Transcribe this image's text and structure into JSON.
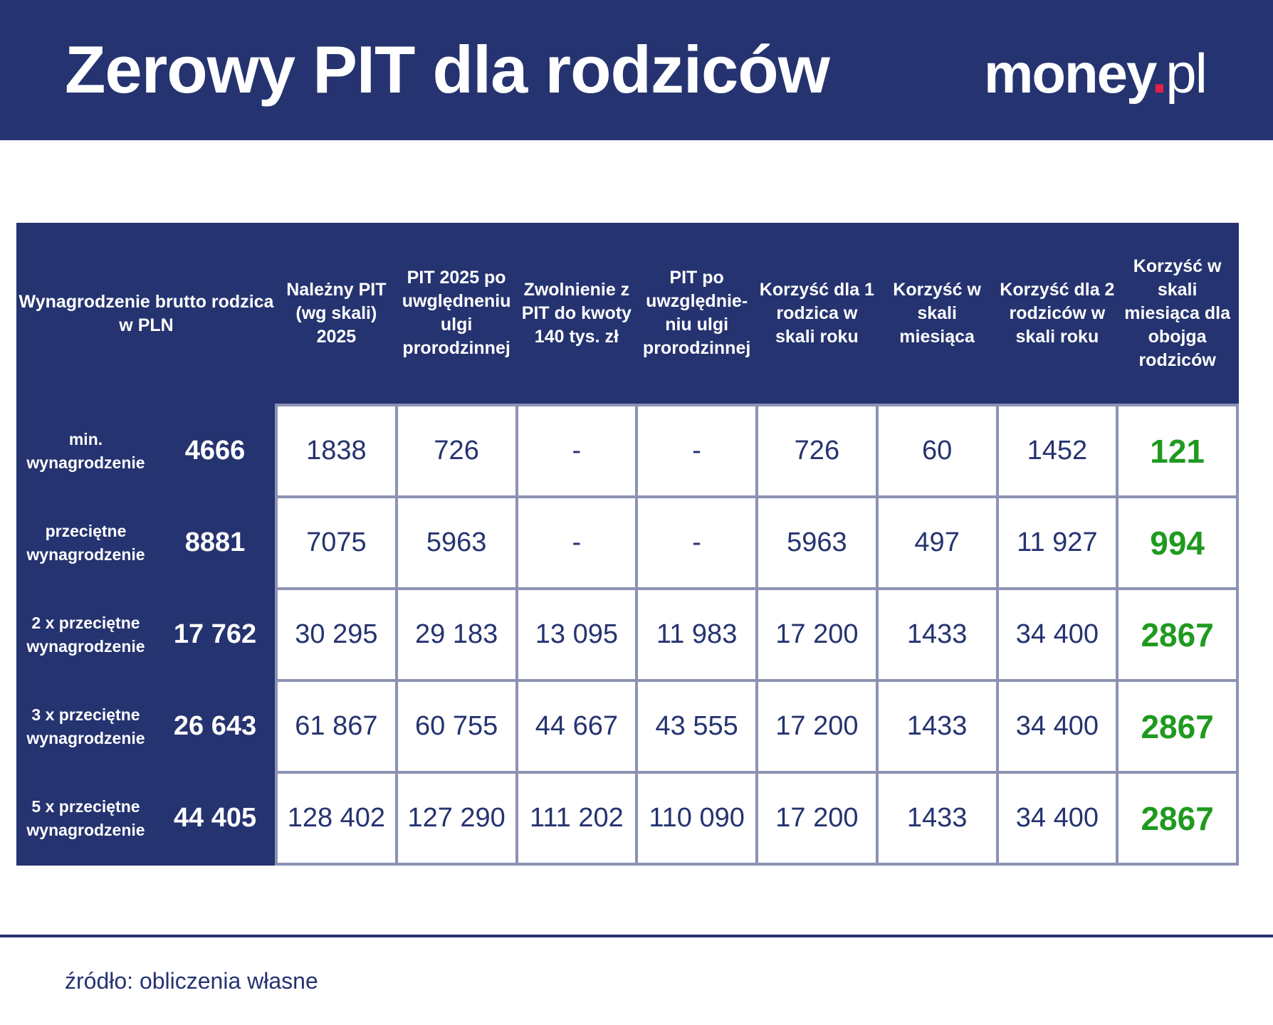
{
  "header": {
    "title": "Zerowy PIT dla rodziców",
    "logo": {
      "main": "money",
      "dot": ".",
      "suffix": "pl"
    }
  },
  "table": {
    "columns": [
      "Wynagrodzenie brutto rodzica w PLN",
      "Należny PIT (wg skali) 2025",
      "PIT 2025 po uwględneniu ulgi prorodzinnej",
      "Zwolnienie z PIT do kwoty 140 tys. zł",
      "PIT po uwzględnie-niu ulgi prorodzinnej",
      "Korzyść dla 1 rodzica w skali roku",
      "Korzyść w skali miesiąca",
      "Korzyść dla 2 rodziców w skali roku",
      "Korzyść w skali miesiąca dla obojga rodziców"
    ],
    "rows": [
      {
        "label": "min. wynagrodzenie",
        "salary": "4666",
        "cells": [
          "1838",
          "726",
          "-",
          "-",
          "726",
          "60",
          "1452",
          "121"
        ]
      },
      {
        "label": "przeciętne wynagrodzenie",
        "salary": "8881",
        "cells": [
          "7075",
          "5963",
          "-",
          "-",
          "5963",
          "497",
          "11 927",
          "994"
        ]
      },
      {
        "label": "2 x przeciętne wynagrodzenie",
        "salary": "17 762",
        "cells": [
          "30 295",
          "29 183",
          "13 095",
          "11 983",
          "17 200",
          "1433",
          "34 400",
          "2867"
        ]
      },
      {
        "label": "3 x przeciętne wynagrodzenie",
        "salary": "26 643",
        "cells": [
          "61 867",
          "60 755",
          "44 667",
          "43 555",
          "17 200",
          "1433",
          "34 400",
          "2867"
        ]
      },
      {
        "label": "5 x przeciętne wynagrodzenie",
        "salary": "44 405",
        "cells": [
          "128 402",
          "127 290",
          "111 202",
          "110 090",
          "17 200",
          "1433",
          "34 400",
          "2867"
        ]
      }
    ]
  },
  "footer": {
    "source": "źródło: obliczenia własne"
  },
  "colors": {
    "navy": "#253370",
    "green": "#1f9a1f",
    "grid": "#8c92b3",
    "logo_dot": "#e3204b"
  }
}
